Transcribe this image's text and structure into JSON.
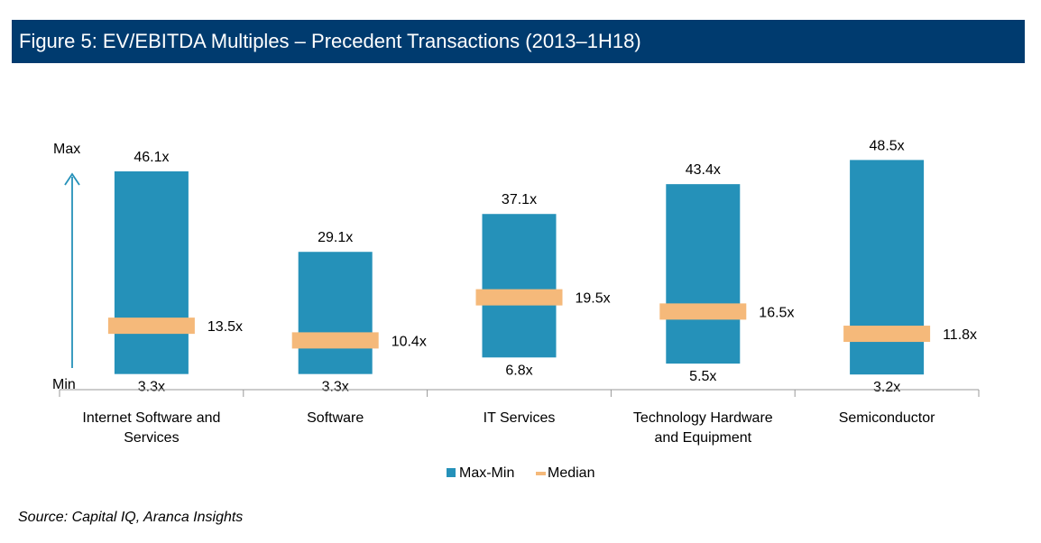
{
  "figure_title": "Figure 5: EV/EBITDA Multiples – Precedent Transactions (2013–1H18)",
  "source_note": "Source: Capital IQ, Aranca Insights",
  "colors": {
    "title_bar": "#003B6F",
    "range_bar": "#2591B9",
    "median": "#F5B97A",
    "arrow": "#2591B9"
  },
  "chart_data": {
    "type": "bar",
    "subtype": "floating-range-with-median",
    "categories": [
      "Internet Software and Services",
      "Software",
      "IT Services",
      "Technology Hardware and Equipment",
      "Semiconductor"
    ],
    "category_lines": [
      [
        "Internet Software and",
        "Services"
      ],
      [
        "Software"
      ],
      [
        "IT Services"
      ],
      [
        "Technology Hardware",
        "and Equipment"
      ],
      [
        "Semiconductor"
      ]
    ],
    "series": [
      {
        "name": "Max-Min",
        "max": [
          46.1,
          29.1,
          37.1,
          43.4,
          48.5
        ],
        "min": [
          3.3,
          3.3,
          6.8,
          5.5,
          3.2
        ]
      },
      {
        "name": "Median",
        "values": [
          13.5,
          10.4,
          19.5,
          16.5,
          11.8
        ]
      }
    ],
    "max_labels": [
      "46.1x",
      "29.1x",
      "37.1x",
      "43.4x",
      "48.5x"
    ],
    "min_labels": [
      "3.3x",
      "3.3x",
      "6.8x",
      "5.5x",
      "3.2x"
    ],
    "median_labels": [
      "13.5x",
      "10.4x",
      "19.5x",
      "16.5x",
      "11.8x"
    ],
    "axis_labels": {
      "max": "Max",
      "min": "Min"
    },
    "legend": {
      "position": "bottom",
      "entries": [
        "Max-Min",
        "Median"
      ]
    },
    "ylim": [
      0,
      50
    ],
    "grid": false
  }
}
